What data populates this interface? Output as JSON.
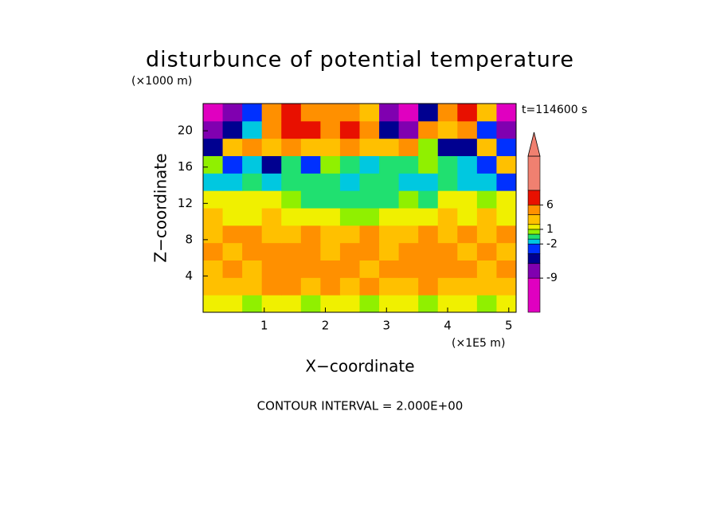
{
  "chart_data": {
    "type": "contour",
    "title": "disturbunce of potential temperature",
    "x_label": "X−coordinate",
    "y_label": "Z−coordinate",
    "x_unit": "(×1E5 m)",
    "y_unit": "(×1000 m)",
    "time_label": "t=114600 s",
    "footer": "CONTOUR INTERVAL = 2.000E+00",
    "xlim": [
      0,
      5.12
    ],
    "ylim": [
      0,
      23
    ],
    "xticks": [
      1,
      2,
      3,
      4,
      5
    ],
    "yticks": [
      4,
      8,
      12,
      16,
      20
    ],
    "z": [
      [
        1,
        1.5,
        0.5,
        1.5,
        1,
        0.5,
        1.5,
        1,
        0.5,
        1.5,
        1,
        0.5,
        1.5,
        1,
        0.5,
        1.5
      ],
      [
        3,
        2.5,
        3,
        4.5,
        4.5,
        3,
        4.5,
        3,
        4.5,
        3,
        3,
        4.5,
        3,
        3,
        2.5,
        3
      ],
      [
        3,
        4.5,
        3,
        4.5,
        5,
        4.5,
        4.5,
        4.5,
        3,
        4.5,
        4.5,
        4.5,
        5,
        4.5,
        3,
        4.5
      ],
      [
        4.5,
        3,
        4.5,
        4.5,
        5,
        4.5,
        3,
        4.5,
        4.5,
        3,
        4.5,
        4.5,
        4.5,
        3,
        4.5,
        3
      ],
      [
        3,
        4.5,
        4.5,
        3,
        3,
        4.5,
        3,
        3,
        4.5,
        3,
        3,
        4.5,
        3,
        4.5,
        3,
        4.5
      ],
      [
        3,
        1.5,
        1.5,
        3,
        1.5,
        1.5,
        1.5,
        0.5,
        0.5,
        1.5,
        1.5,
        1.5,
        3,
        1.5,
        3,
        1.5
      ],
      [
        1.5,
        1.5,
        1.5,
        1.5,
        0.5,
        -0.5,
        -0.5,
        -0.5,
        -0.5,
        -0.5,
        0.5,
        -0.5,
        1.5,
        1.5,
        0.5,
        1.5
      ],
      [
        -1.5,
        -1.5,
        -0.5,
        -1.5,
        -0.5,
        -0.5,
        -0.5,
        -1.5,
        -0.5,
        -0.5,
        -1.5,
        -1.5,
        -0.5,
        -1.5,
        -1.5,
        -3
      ],
      [
        0.5,
        -3,
        -1.5,
        -5,
        -0.5,
        -3,
        0.5,
        -0.5,
        -1.5,
        -0.5,
        -0.5,
        0.5,
        -0.5,
        -1.5,
        -3,
        3
      ],
      [
        -5,
        3,
        4.5,
        3,
        4.5,
        3,
        3,
        4.5,
        3,
        3,
        4.5,
        0.5,
        -5,
        -5,
        3,
        -3
      ],
      [
        -7,
        -5,
        -1.5,
        4.5,
        7,
        7,
        4.5,
        7,
        4.5,
        -5,
        -7,
        4.5,
        3,
        4.5,
        -3,
        -7
      ],
      [
        -10,
        -7,
        -3,
        4.5,
        7,
        4.5,
        4.5,
        4.5,
        3,
        -7,
        -10,
        -5,
        4.5,
        7,
        3,
        -10
      ]
    ],
    "colorbar": {
      "levels": [
        -16,
        -9,
        -6,
        -4,
        -2,
        -1,
        0,
        1,
        2,
        4,
        6,
        9,
        16
      ],
      "colors": [
        "#e000c0",
        "#8000b0",
        "#000090",
        "#0030ff",
        "#00c8e0",
        "#20e070",
        "#90f000",
        "#f0f000",
        "#ffc000",
        "#ff9000",
        "#e81000",
        "#f08070"
      ],
      "ticks": [
        6,
        1,
        -2,
        -9
      ],
      "extend_color": "#f08070"
    }
  }
}
